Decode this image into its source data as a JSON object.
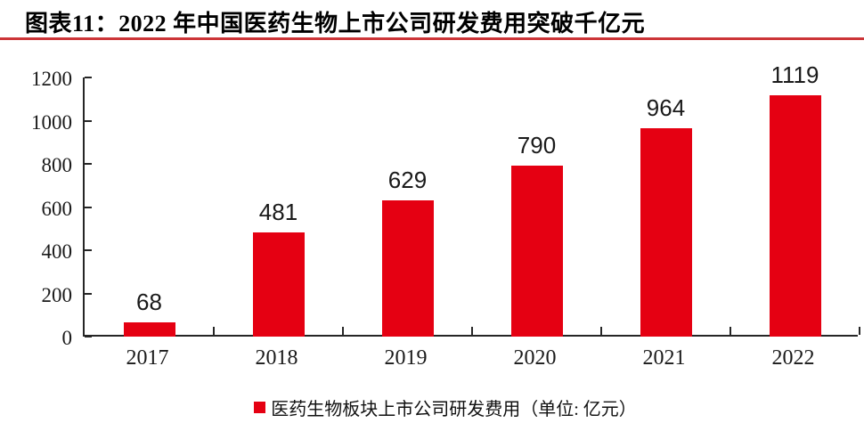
{
  "header": {
    "title": "图表11：2022 年中国医药生物上市公司研发费用突破千亿元",
    "rule_color": "#cc3538"
  },
  "chart_data": {
    "type": "bar",
    "title": "图表11：2022 年中国医药生物上市公司研发费用突破千亿元",
    "categories": [
      "2017",
      "2018",
      "2019",
      "2020",
      "2021",
      "2022"
    ],
    "values": [
      68,
      481,
      629,
      790,
      964,
      1119
    ],
    "series_name": "医药生物板块上市公司研发费用（单位: 亿元）",
    "xlabel": "",
    "ylabel": "",
    "ylim": [
      0,
      1200
    ],
    "yticks": [
      0,
      200,
      400,
      600,
      800,
      1000,
      1200
    ],
    "grid": false,
    "legend_position": "bottom",
    "bar_color": "#e50012",
    "axis_color": "#262626",
    "label_color": "#1a1a1a"
  },
  "legend": {
    "marker_color": "#e50012",
    "label": "医药生物板块上市公司研发费用（单位: 亿元）"
  }
}
